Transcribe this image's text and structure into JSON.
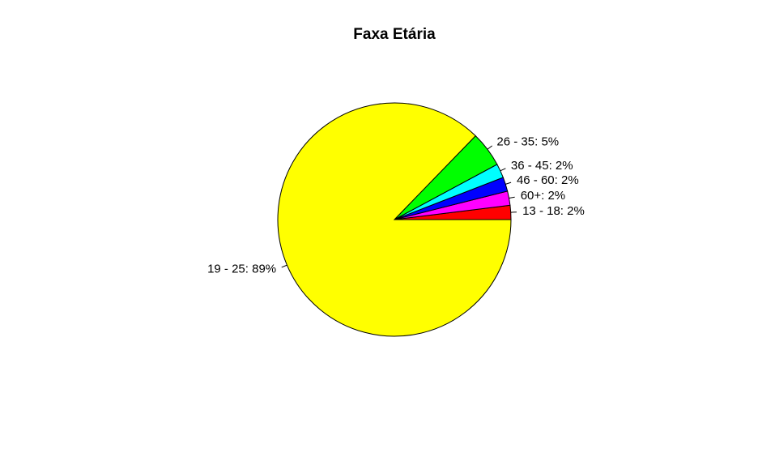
{
  "chart_data": {
    "type": "pie",
    "title": "Faxa Etária",
    "slices": [
      {
        "label": "13 - 18: 2%",
        "value": 2,
        "color": "#ff0000"
      },
      {
        "label": "60+: 2%",
        "value": 2,
        "color": "#ff00ff"
      },
      {
        "label": "46 - 60: 2%",
        "value": 2,
        "color": "#0000ff"
      },
      {
        "label": "36 - 45: 2%",
        "value": 2,
        "color": "#00ffff"
      },
      {
        "label": "26 - 35: 5%",
        "value": 5,
        "color": "#00ff00"
      },
      {
        "label": "19 - 25: 89%",
        "value": 89,
        "color": "#ffff00"
      }
    ],
    "start": "east",
    "direction": "counterclockwise",
    "border_color": "#000000"
  }
}
